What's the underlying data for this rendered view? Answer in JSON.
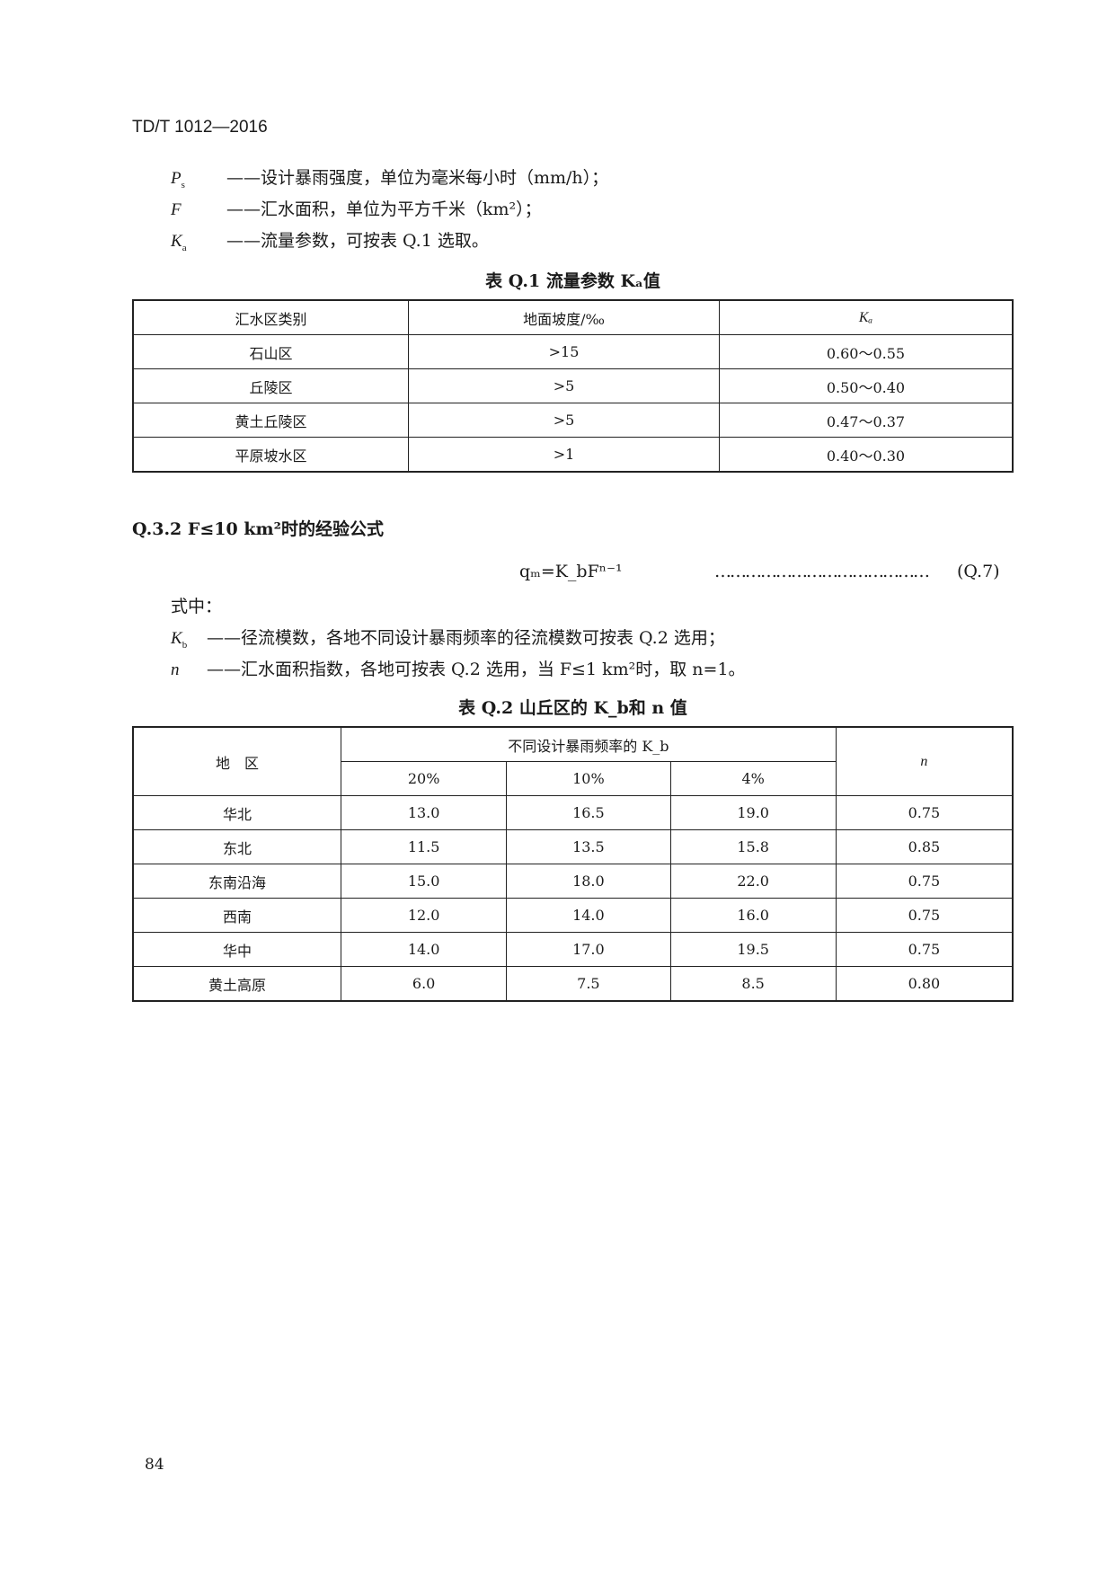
{
  "header": {
    "standard_code": "TD/T 1012—2016"
  },
  "definitions_top": [
    {
      "symbol": "P",
      "sub": "s",
      "text": "——设计暴雨强度，单位为毫米每小时（mm/h）；"
    },
    {
      "symbol": "F",
      "sub": "",
      "text": "——汇水面积，单位为平方千米（km²）；"
    },
    {
      "symbol": "K",
      "sub": "a",
      "text": "——流量参数，可按表 Q.1 选取。"
    }
  ],
  "table1": {
    "caption": "表 Q.1   流量参数 Kₐ值",
    "headers": [
      "汇水区类别",
      "地面坡度/‰",
      "Kₐ"
    ],
    "rows": [
      [
        "石山区",
        ">15",
        "0.60～0.55"
      ],
      [
        "丘陵区",
        ">5",
        "0.50～0.40"
      ],
      [
        "黄土丘陵区",
        ">5",
        "0.47～0.37"
      ],
      [
        "平原坡水区",
        ">1",
        "0.40～0.30"
      ]
    ]
  },
  "section": {
    "title": "Q.3.2   F≤10 km²时的经验公式"
  },
  "formula": {
    "expression": "qₘ=K_bFⁿ⁻¹",
    "leader": "……………………………………",
    "number": "(Q.7)"
  },
  "where_label": "式中：",
  "definitions_bottom": [
    {
      "symbol": "K",
      "sub": "b",
      "text": "——径流模数，各地不同设计暴雨频率的径流模数可按表 Q.2 选用；"
    },
    {
      "symbol": "n",
      "sub": "",
      "text": "——汇水面积指数，各地可按表 Q.2 选用，当 F≤1 km²时，取 n=1。"
    }
  ],
  "table2": {
    "caption": "表 Q.2   山丘区的 K_b和 n 值",
    "header_region": "地　区",
    "header_group": "不同设计暴雨频率的 K_b",
    "header_n": "n",
    "sub_headers": [
      "20%",
      "10%",
      "4%"
    ],
    "rows": [
      [
        "华北",
        "13.0",
        "16.5",
        "19.0",
        "0.75"
      ],
      [
        "东北",
        "11.5",
        "13.5",
        "15.8",
        "0.85"
      ],
      [
        "东南沿海",
        "15.0",
        "18.0",
        "22.0",
        "0.75"
      ],
      [
        "西南",
        "12.0",
        "14.0",
        "16.0",
        "0.75"
      ],
      [
        "华中",
        "14.0",
        "17.0",
        "19.5",
        "0.75"
      ],
      [
        "黄土高原",
        "6.0",
        "7.5",
        "8.5",
        "0.80"
      ]
    ]
  },
  "page_number": "84"
}
